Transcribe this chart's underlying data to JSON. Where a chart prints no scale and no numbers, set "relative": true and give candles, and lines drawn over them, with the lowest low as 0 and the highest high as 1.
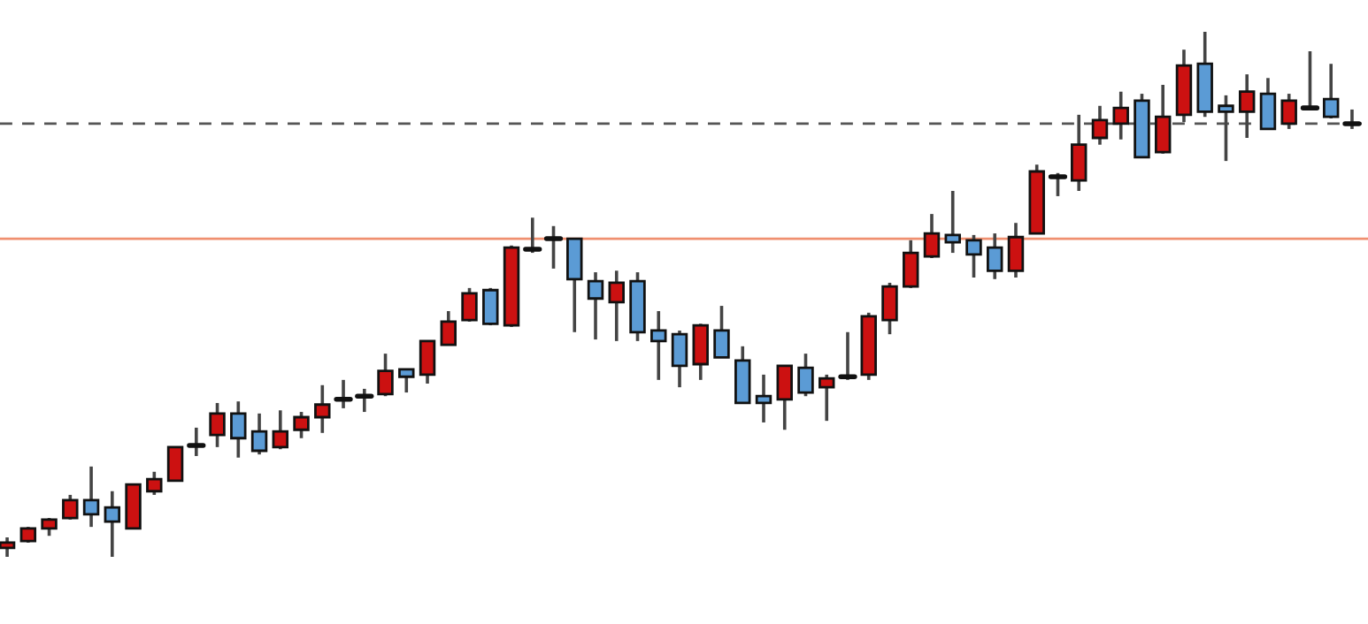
{
  "chart_data": {
    "type": "candlestick",
    "relative": true,
    "categories": [
      null,
      null,
      null,
      null,
      null,
      null,
      null,
      null,
      null,
      null,
      null,
      null,
      null,
      null,
      null,
      null,
      null,
      null,
      null,
      null,
      null,
      null,
      null,
      null,
      null,
      null,
      null,
      null,
      null,
      null,
      null,
      null,
      null,
      null,
      null,
      null,
      null,
      null,
      null,
      null,
      null,
      null,
      null,
      null,
      null,
      null,
      null,
      null,
      null,
      null,
      null,
      null,
      null,
      null,
      null,
      null,
      null,
      null,
      null,
      null,
      null,
      null,
      null,
      null,
      null
    ],
    "ohlc": [
      [
        0.017,
        0.037,
        0,
        0.027
      ],
      [
        0.03,
        0.057,
        0.027,
        0.054
      ],
      [
        0.054,
        0.074,
        0.04,
        0.071
      ],
      [
        0.074,
        0.118,
        0.071,
        0.108
      ],
      [
        0.108,
        0.172,
        0.057,
        0.081
      ],
      [
        0.094,
        0.125,
        0,
        0.067
      ],
      [
        0.054,
        0.138,
        0.054,
        0.138
      ],
      [
        0.125,
        0.162,
        0.118,
        0.148
      ],
      [
        0.145,
        0.209,
        0.145,
        0.209
      ],
      [
        0.212,
        0.246,
        0.192,
        0.212
      ],
      [
        0.232,
        0.293,
        0.209,
        0.273
      ],
      [
        0.273,
        0.296,
        0.189,
        0.226
      ],
      [
        0.239,
        0.273,
        0.195,
        0.202
      ],
      [
        0.209,
        0.279,
        0.205,
        0.239
      ],
      [
        0.242,
        0.276,
        0.226,
        0.266
      ],
      [
        0.266,
        0.327,
        0.236,
        0.29
      ],
      [
        0.3,
        0.337,
        0.283,
        0.3
      ],
      [
        0.306,
        0.32,
        0.276,
        0.306
      ],
      [
        0.31,
        0.387,
        0.306,
        0.354
      ],
      [
        0.357,
        0.357,
        0.313,
        0.343
      ],
      [
        0.347,
        0.411,
        0.33,
        0.411
      ],
      [
        0.404,
        0.468,
        0.404,
        0.448
      ],
      [
        0.451,
        0.512,
        0.448,
        0.502
      ],
      [
        0.508,
        0.512,
        0.441,
        0.444
      ],
      [
        0.441,
        0.593,
        0.438,
        0.589
      ],
      [
        0.586,
        0.646,
        0.579,
        0.586
      ],
      [
        0.606,
        0.63,
        0.549,
        0.606
      ],
      [
        0.606,
        0.606,
        0.428,
        0.529
      ],
      [
        0.525,
        0.542,
        0.414,
        0.492
      ],
      [
        0.485,
        0.545,
        0.411,
        0.522
      ],
      [
        0.525,
        0.542,
        0.411,
        0.428
      ],
      [
        0.431,
        0.468,
        0.337,
        0.411
      ],
      [
        0.424,
        0.431,
        0.323,
        0.364
      ],
      [
        0.367,
        0.444,
        0.337,
        0.441
      ],
      [
        0.431,
        0.478,
        0.38,
        0.38
      ],
      [
        0.374,
        0.401,
        0.293,
        0.293
      ],
      [
        0.306,
        0.347,
        0.256,
        0.293
      ],
      [
        0.3,
        0.364,
        0.242,
        0.364
      ],
      [
        0.36,
        0.387,
        0.306,
        0.313
      ],
      [
        0.323,
        0.347,
        0.259,
        0.34
      ],
      [
        0.343,
        0.428,
        0.337,
        0.343
      ],
      [
        0.347,
        0.465,
        0.337,
        0.458
      ],
      [
        0.451,
        0.522,
        0.424,
        0.515
      ],
      [
        0.515,
        0.603,
        0.512,
        0.579
      ],
      [
        0.572,
        0.653,
        0.569,
        0.616
      ],
      [
        0.613,
        0.697,
        0.579,
        0.599
      ],
      [
        0.603,
        0.613,
        0.532,
        0.576
      ],
      [
        0.589,
        0.616,
        0.529,
        0.545
      ],
      [
        0.545,
        0.636,
        0.532,
        0.609
      ],
      [
        0.616,
        0.747,
        0.616,
        0.734
      ],
      [
        0.724,
        0.731,
        0.687,
        0.724
      ],
      [
        0.717,
        0.842,
        0.697,
        0.785
      ],
      [
        0.798,
        0.859,
        0.785,
        0.832
      ],
      [
        0.825,
        0.886,
        0.795,
        0.855
      ],
      [
        0.869,
        0.882,
        0.761,
        0.761
      ],
      [
        0.771,
        0.899,
        0.768,
        0.838
      ],
      [
        0.842,
        0.966,
        0.828,
        0.936
      ],
      [
        0.939,
        1,
        0.838,
        0.848
      ],
      [
        0.859,
        0.879,
        0.754,
        0.848
      ],
      [
        0.848,
        0.919,
        0.798,
        0.886
      ],
      [
        0.882,
        0.912,
        0.815,
        0.815
      ],
      [
        0.825,
        0.882,
        0.815,
        0.869
      ],
      [
        0.855,
        0.963,
        0.852,
        0.855
      ],
      [
        0.872,
        0.939,
        0.835,
        0.838
      ],
      [
        0.825,
        0.852,
        0.815,
        0.825
      ]
    ],
    "colors": [
      "#cc1111",
      "#cc1111",
      "#cc1111",
      "#cc1111",
      "#5b9bd5",
      "#5b9bd5",
      "#cc1111",
      "#cc1111",
      "#cc1111",
      "#111111",
      "#cc1111",
      "#5b9bd5",
      "#5b9bd5",
      "#cc1111",
      "#cc1111",
      "#cc1111",
      "#111111",
      "#111111",
      "#cc1111",
      "#5b9bd5",
      "#cc1111",
      "#cc1111",
      "#cc1111",
      "#5b9bd5",
      "#cc1111",
      "#111111",
      "#111111",
      "#5b9bd5",
      "#5b9bd5",
      "#cc1111",
      "#5b9bd5",
      "#5b9bd5",
      "#5b9bd5",
      "#cc1111",
      "#5b9bd5",
      "#5b9bd5",
      "#5b9bd5",
      "#cc1111",
      "#5b9bd5",
      "#cc1111",
      "#111111",
      "#cc1111",
      "#cc1111",
      "#cc1111",
      "#cc1111",
      "#5b9bd5",
      "#5b9bd5",
      "#5b9bd5",
      "#cc1111",
      "#cc1111",
      "#111111",
      "#cc1111",
      "#cc1111",
      "#cc1111",
      "#5b9bd5",
      "#cc1111",
      "#cc1111",
      "#5b9bd5",
      "#5b9bd5",
      "#cc1111",
      "#5b9bd5",
      "#cc1111",
      "#111111",
      "#5b9bd5",
      "#111111"
    ],
    "ref_lines": [
      {
        "axis": "y",
        "value": 0.825,
        "color": "#555555",
        "line_style": "dashed"
      },
      {
        "axis": "y",
        "value": 0.606,
        "color": "#f09070",
        "line_style": "solid"
      }
    ]
  }
}
